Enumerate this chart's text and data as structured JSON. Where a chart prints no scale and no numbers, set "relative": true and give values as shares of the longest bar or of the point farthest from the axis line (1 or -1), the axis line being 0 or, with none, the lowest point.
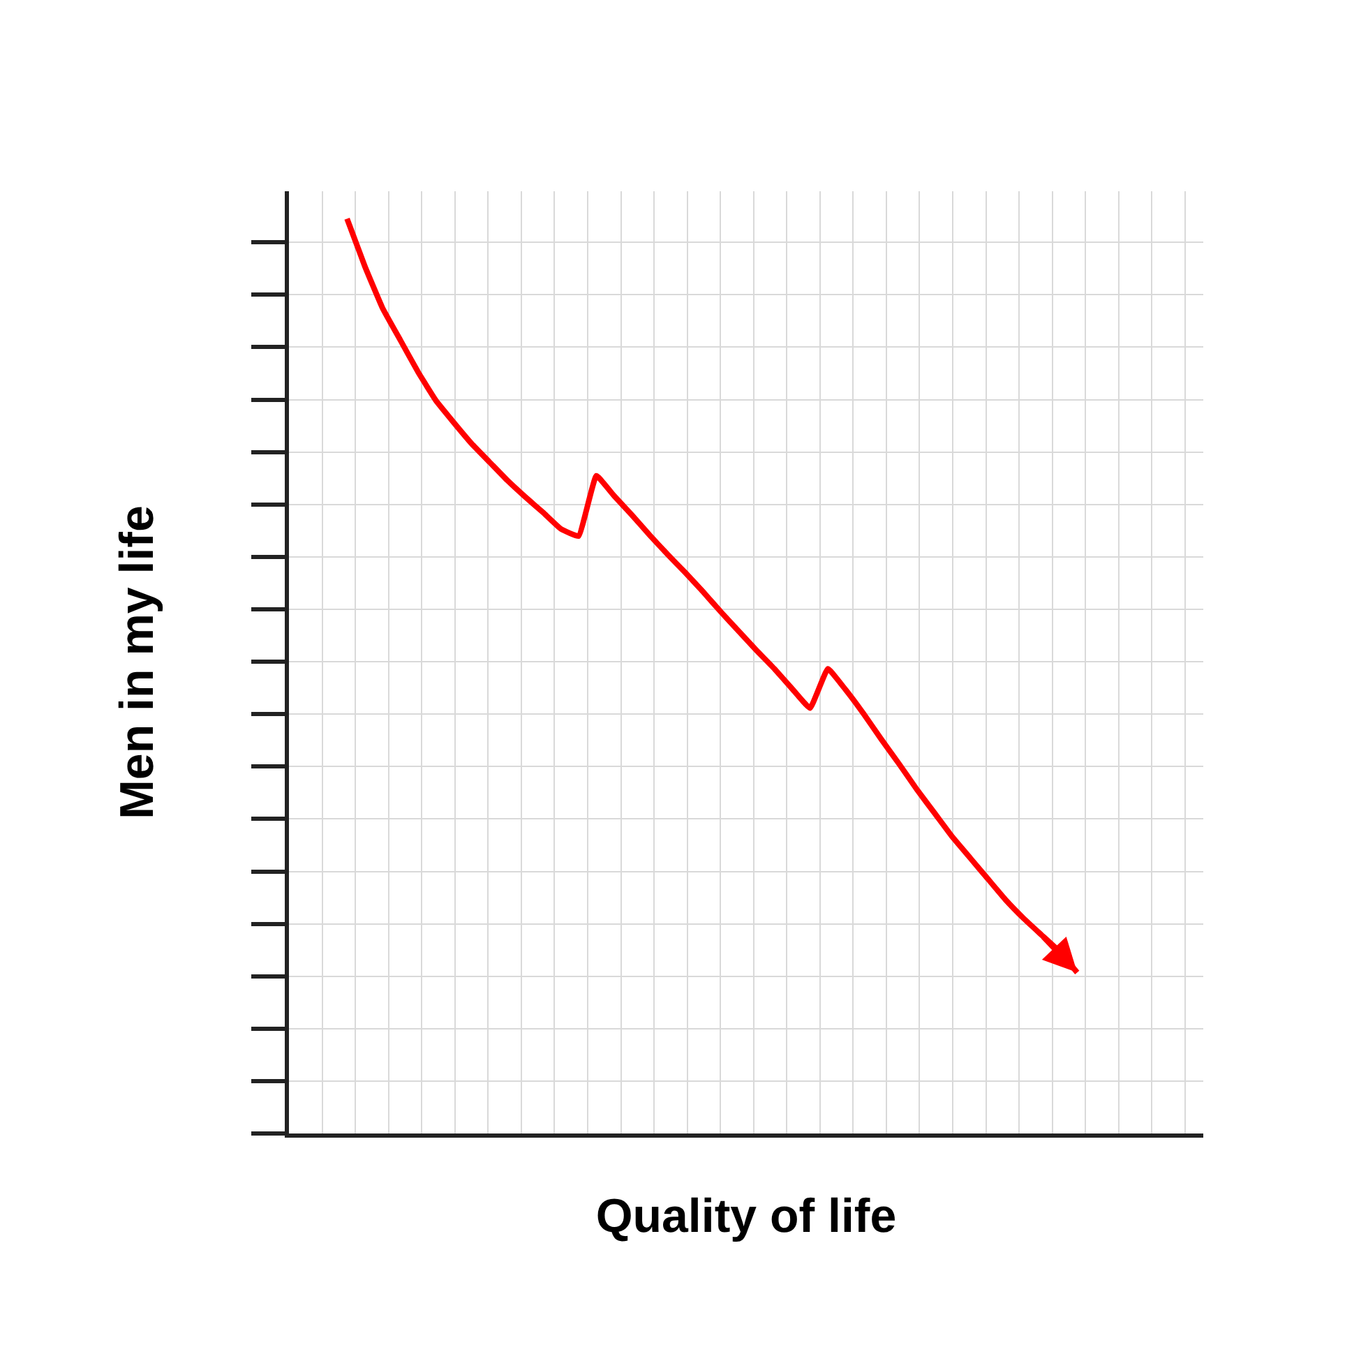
{
  "chart_data": {
    "type": "line",
    "relative": true,
    "xlabel": "Quality of life",
    "ylabel": "Men in my life",
    "grid": true,
    "categories": [
      null,
      null,
      null,
      null,
      null,
      null,
      null,
      null,
      null,
      null,
      null,
      null,
      null,
      null,
      null,
      null,
      null,
      null,
      null,
      null,
      null,
      null,
      null,
      null,
      null,
      null,
      null,
      null,
      null,
      null,
      null,
      null,
      null,
      null,
      null,
      null,
      null,
      null,
      null,
      null,
      null,
      null
    ],
    "series": [
      {
        "color": "#ff0000",
        "values": [
          1.0,
          0.948,
          0.902,
          0.867,
          0.832,
          0.801,
          0.777,
          0.754,
          0.734,
          0.714,
          0.696,
          0.679,
          0.661,
          0.653,
          0.719,
          0.697,
          0.676,
          0.654,
          0.633,
          0.613,
          0.592,
          0.57,
          0.549,
          0.528,
          0.508,
          0.486,
          0.465,
          0.508,
          0.485,
          0.459,
          0.431,
          0.404,
          0.376,
          0.35,
          0.324,
          0.301,
          0.278,
          0.255,
          0.235,
          0.217,
          0.199,
          0.176
        ]
      }
    ]
  }
}
